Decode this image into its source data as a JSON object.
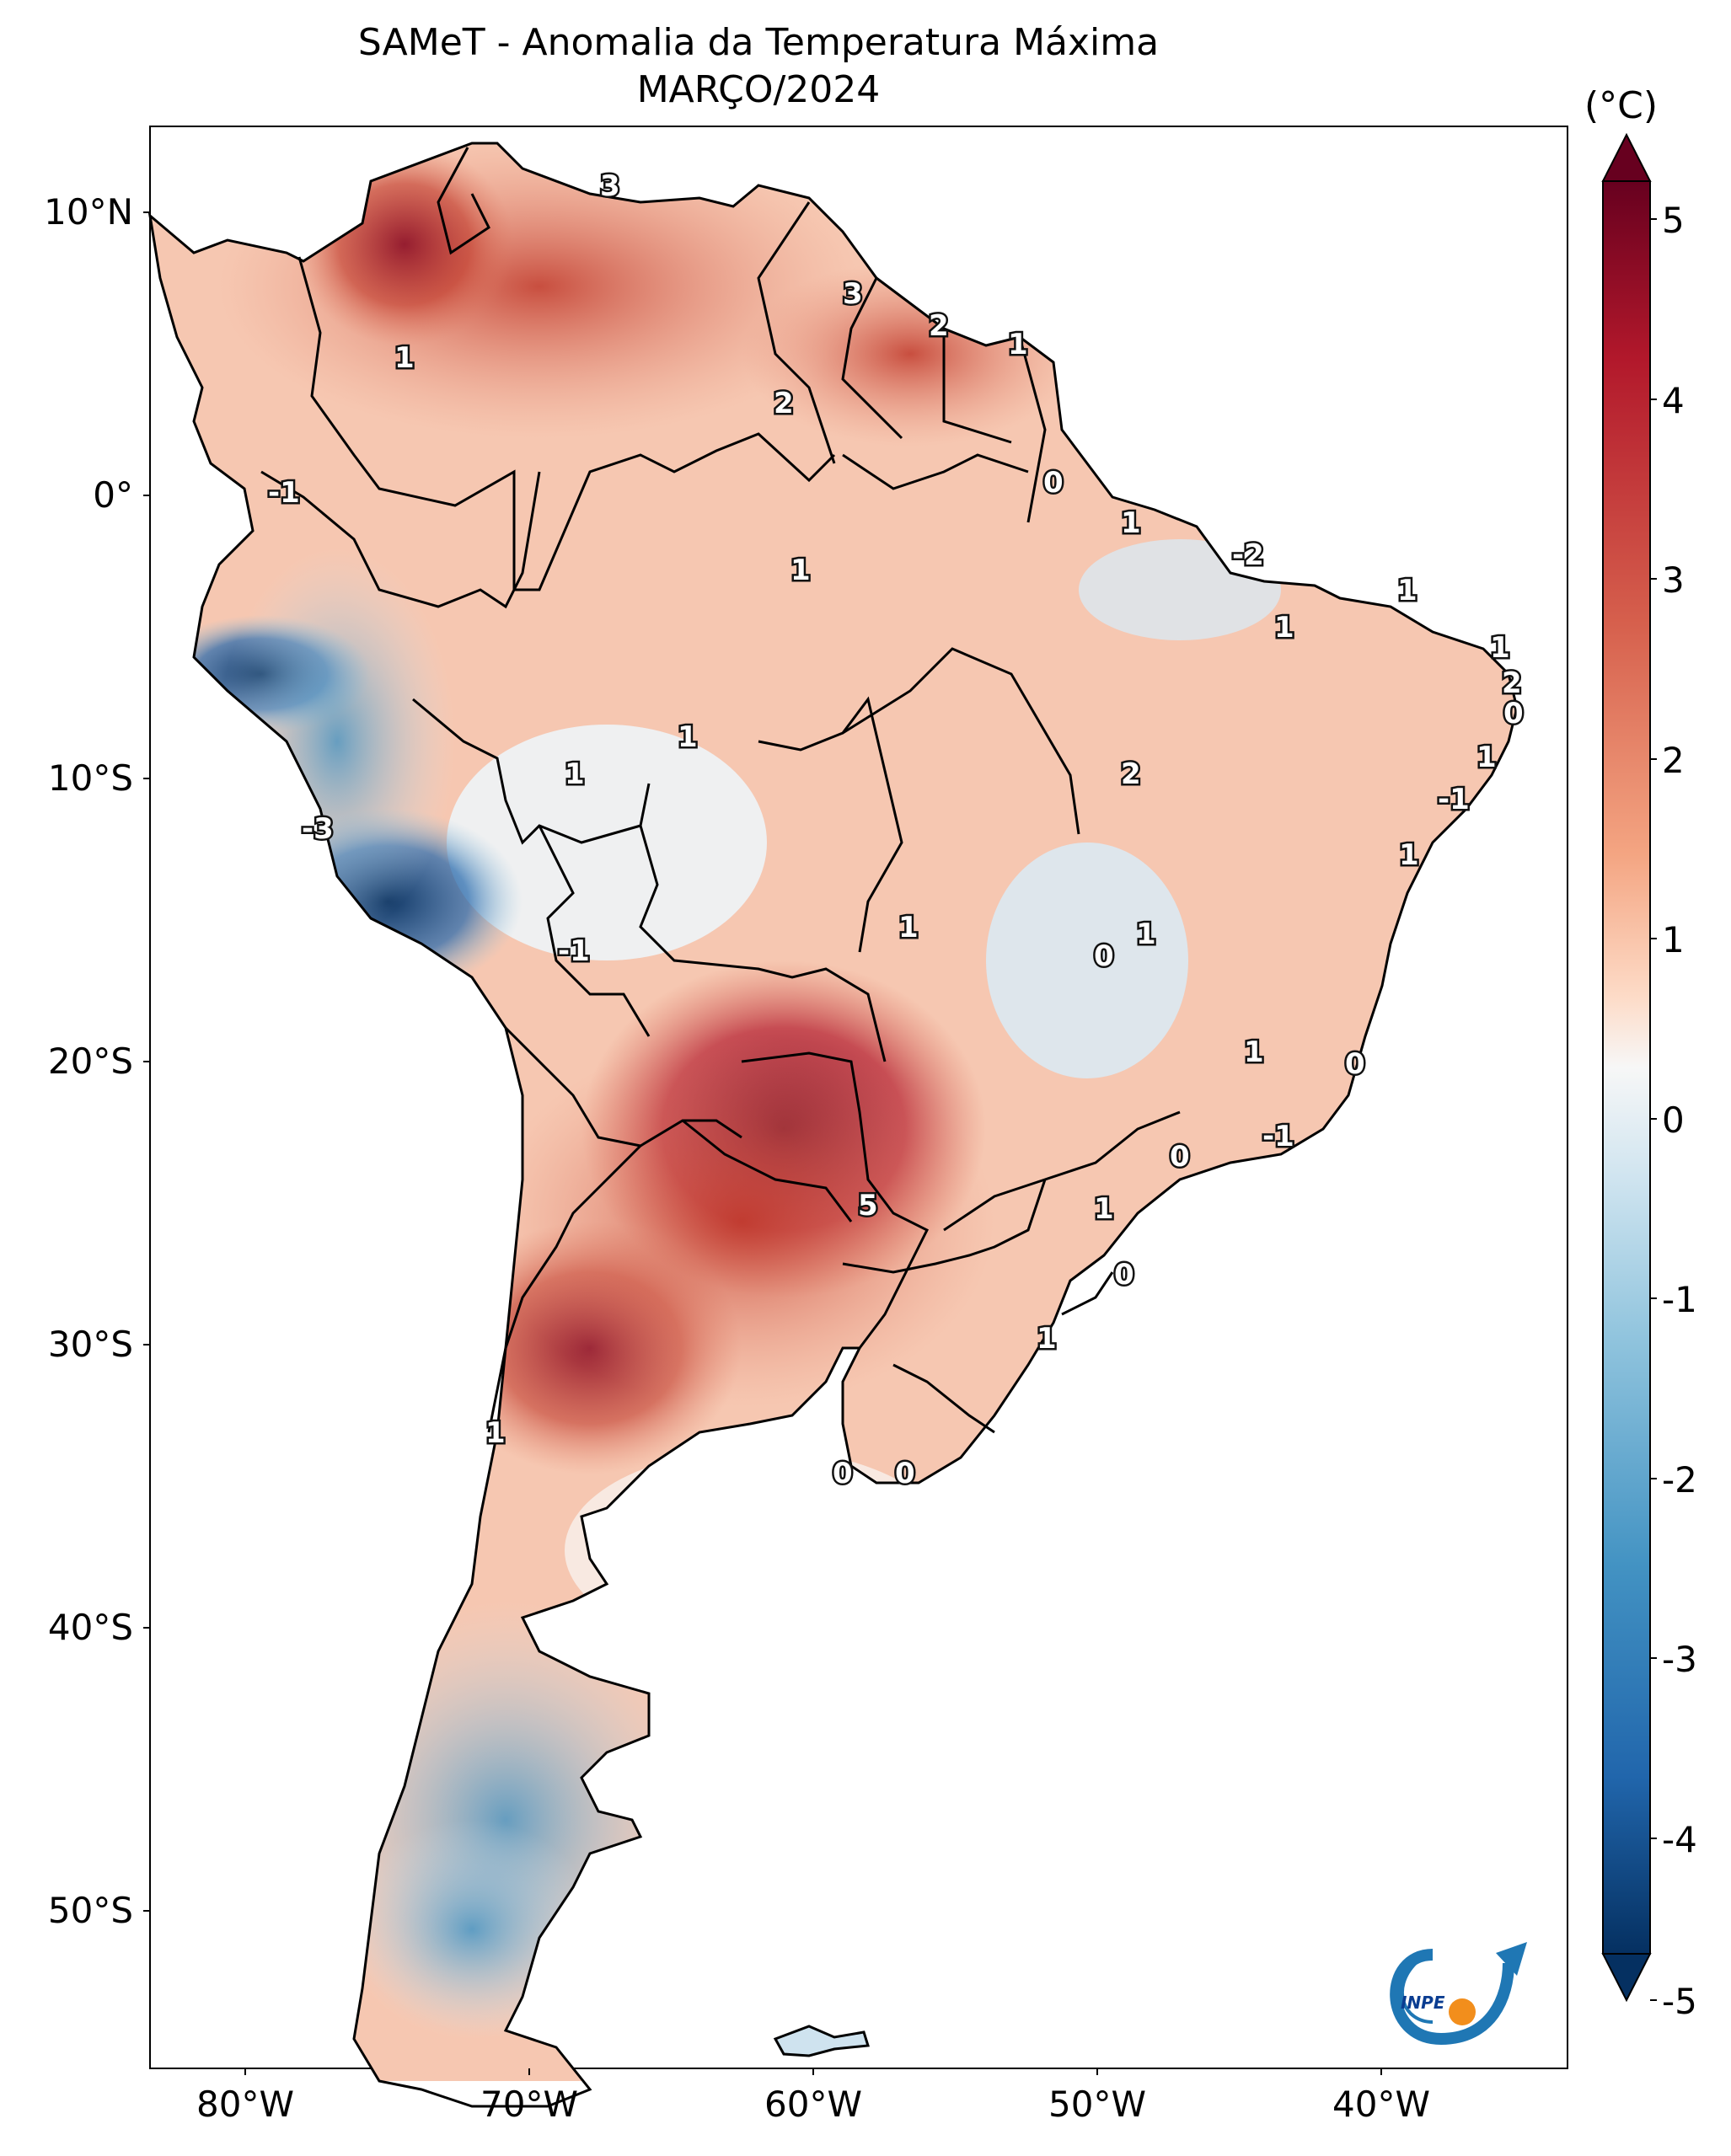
{
  "title": "SAMeT - Anomalia da Temperatura Máxima",
  "subtitle": "MARÇO/2024",
  "colorbar": {
    "unit": "(°C)",
    "ticks": [
      "5",
      "4",
      "3",
      "2",
      "1",
      "0",
      "-1",
      "-2",
      "-3",
      "-4",
      "-5"
    ],
    "range": [
      -5,
      5
    ]
  },
  "axes": {
    "lat_ticks": [
      "10°N",
      "0°",
      "10°S",
      "20°S",
      "30°S",
      "40°S",
      "50°S"
    ],
    "lon_ticks": [
      "80°W",
      "70°W",
      "60°W",
      "50°W",
      "40°W"
    ]
  },
  "contour_labels": [
    "3",
    "1",
    "3",
    "2",
    "1",
    "2",
    "0",
    "1",
    "-1",
    "1",
    "-2",
    "1",
    "1",
    "1",
    "2",
    "0",
    "1",
    "-1",
    "1",
    "1",
    "2",
    "-3",
    "1",
    "0",
    "1",
    "-1",
    "1",
    "1",
    "0",
    "-1",
    "0",
    "5",
    "1",
    "0",
    "1",
    "1",
    "0",
    "0"
  ],
  "logo": "INPE"
}
